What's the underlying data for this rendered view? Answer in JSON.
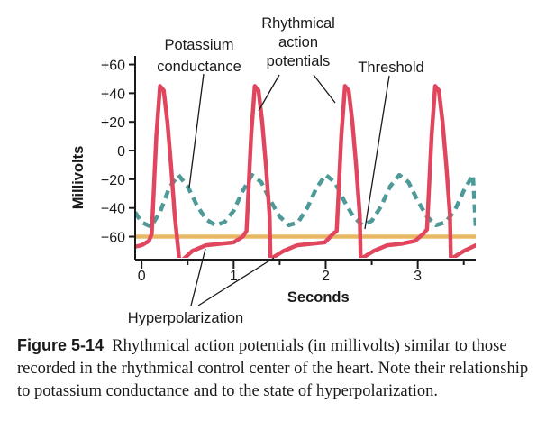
{
  "chart_data": {
    "type": "line",
    "xlabel": "Seconds",
    "ylabel": "Millivolts",
    "xlim": [
      -0.07,
      3.63
    ],
    "ylim": [
      -76,
      66
    ],
    "x_ticks": [
      0,
      1,
      2,
      3
    ],
    "x_minor_ticks": [
      0.5,
      1.5,
      2.5,
      3.5
    ],
    "y_ticks": [
      60,
      40,
      20,
      0,
      -20,
      -40,
      -60
    ],
    "y_tick_labels": [
      "+60",
      "+40",
      "+20",
      "0",
      "−20",
      "−40",
      "−60"
    ],
    "grid": false,
    "series": [
      {
        "name": "Rhythmical action potentials",
        "style": "solid",
        "color": "#e0475f",
        "x": [
          -0.07,
          0.0,
          0.08,
          0.11,
          0.16,
          0.2,
          0.24,
          0.28,
          0.32,
          0.36,
          0.4,
          0.41,
          0.45,
          0.55,
          0.7,
          0.85,
          1.0,
          1.1,
          1.14,
          1.19,
          1.23,
          1.27,
          1.31,
          1.35,
          1.39,
          1.4,
          1.44,
          1.54,
          1.69,
          1.84,
          1.99,
          2.08,
          2.12,
          2.17,
          2.21,
          2.25,
          2.29,
          2.33,
          2.37,
          2.38,
          2.42,
          2.52,
          2.67,
          2.82,
          2.97,
          3.06,
          3.1,
          3.15,
          3.19,
          3.23,
          3.27,
          3.31,
          3.35,
          3.36,
          3.4,
          3.5,
          3.63
        ],
        "y": [
          -67,
          -66,
          -63,
          -58,
          10,
          45,
          42,
          20,
          -10,
          -45,
          -70,
          -77,
          -76,
          -70,
          -66,
          -65,
          -64,
          -60,
          -56,
          10,
          45,
          42,
          20,
          -10,
          -45,
          -76,
          -74,
          -70,
          -66,
          -65,
          -64,
          -58,
          -56,
          10,
          45,
          42,
          20,
          -10,
          -45,
          -76,
          -74,
          -70,
          -66,
          -65,
          -63,
          -58,
          -55,
          10,
          45,
          42,
          20,
          -10,
          -45,
          -76,
          -74,
          -70,
          -66
        ]
      },
      {
        "name": "Potassium conductance",
        "style": "dashed",
        "color": "#4e9a98",
        "x": [
          -0.07,
          0.0,
          0.1,
          0.2,
          0.3,
          0.4,
          0.5,
          0.6,
          0.7,
          0.8,
          0.9,
          1.0,
          1.1,
          1.2,
          1.3,
          1.4,
          1.5,
          1.6,
          1.7,
          1.8,
          1.9,
          2.0,
          2.1,
          2.2,
          2.3,
          2.4,
          2.5,
          2.6,
          2.7,
          2.8,
          2.9,
          3.0,
          3.1,
          3.2,
          3.3,
          3.4,
          3.5,
          3.6,
          3.63
        ],
        "y": [
          -43,
          -50,
          -53,
          -43,
          -26,
          -17,
          -25,
          -38,
          -48,
          -52,
          -50,
          -42,
          -28,
          -17,
          -22,
          -35,
          -46,
          -52,
          -50,
          -40,
          -26,
          -17,
          -22,
          -35,
          -46,
          -52,
          -49,
          -39,
          -25,
          -17,
          -22,
          -35,
          -46,
          -52,
          -50,
          -42,
          -28,
          -17,
          -53
        ]
      },
      {
        "name": "Threshold",
        "style": "solid",
        "color": "#e9b865",
        "x": [
          -0.07,
          3.63
        ],
        "y": [
          -60,
          -60
        ]
      }
    ],
    "annotations": [
      {
        "id": "potassium",
        "lines": [
          "Potassium",
          "conductance"
        ]
      },
      {
        "id": "rhythmical",
        "lines": [
          "Rhythmical",
          "action",
          "potentials"
        ]
      },
      {
        "id": "threshold",
        "lines": [
          "Threshold"
        ]
      },
      {
        "id": "hyperpolarization",
        "lines": [
          "Hyperpolarization"
        ]
      }
    ]
  },
  "caption": {
    "label": "Figure 5-14",
    "text": "Rhythmical action potentials (in millivolts) similar to those recorded in the rhythmical control center of the heart. Note their relationship to potassium conductance and to the state of hyperpolarization."
  }
}
